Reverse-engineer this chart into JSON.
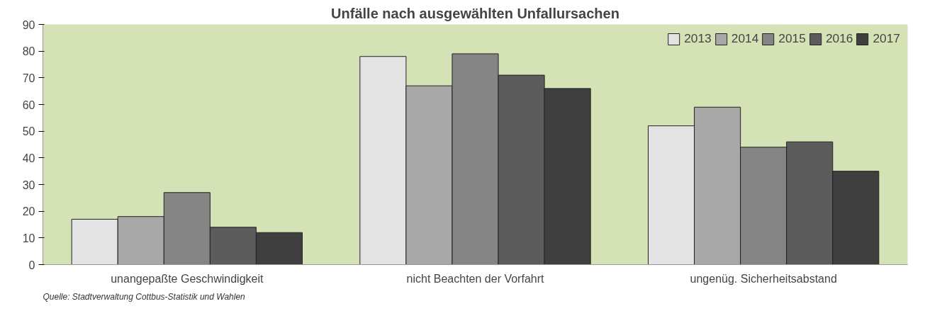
{
  "chart_data": {
    "type": "bar",
    "title": "Unfälle nach ausgewählten Unfallursachen",
    "categories": [
      "unangepaßte Geschwindigkeit",
      "nicht Beachten der Vorfahrt",
      "ungenüg. Sicherheitsabstand"
    ],
    "series": [
      {
        "name": "2013",
        "color": "#e3e3e3",
        "values": [
          17,
          78,
          52
        ]
      },
      {
        "name": "2014",
        "color": "#a8a8a8",
        "values": [
          18,
          67,
          59
        ]
      },
      {
        "name": "2015",
        "color": "#858585",
        "values": [
          27,
          79,
          44
        ]
      },
      {
        "name": "2016",
        "color": "#5c5c5c",
        "values": [
          14,
          71,
          46
        ]
      },
      {
        "name": "2017",
        "color": "#3f3f3f",
        "values": [
          12,
          66,
          35
        ]
      }
    ],
    "ylim": [
      0,
      90
    ],
    "yticks": [
      0,
      10,
      20,
      30,
      40,
      50,
      60,
      70,
      80,
      90
    ],
    "grid": false,
    "legend": "top right",
    "annotations": [
      "Quelle: Stadtverwaltung Cottbus-Statistik und Wahlen"
    ]
  }
}
